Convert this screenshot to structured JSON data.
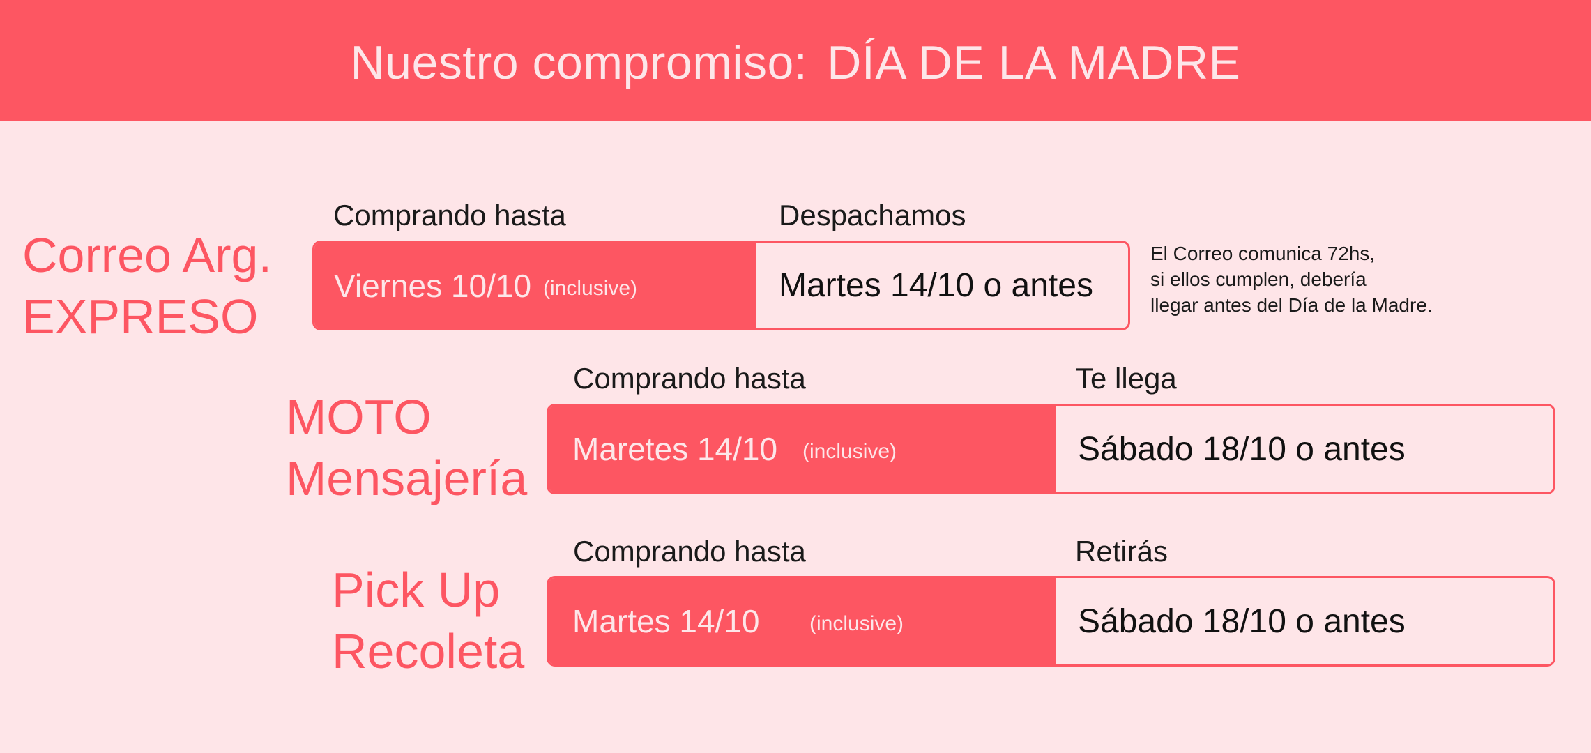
{
  "header": {
    "title_part1": "Nuestro compromiso:",
    "title_part2": "DÍA DE LA MADRE"
  },
  "services": [
    {
      "name_line1": "Correo Arg.",
      "name_line2": "EXPRESO",
      "label_left": "Comprando hasta",
      "label_right": "Despachamos",
      "deadline": "Viernes 10/10",
      "deadline_note": "(inclusive)",
      "result": "Martes 14/10 o antes",
      "note_lines": [
        "El Correo comunica 72hs,",
        "si ellos cumplen, debería",
        "llegar antes del Día de la Madre."
      ]
    },
    {
      "name_line1": "MOTO",
      "name_line2": "Mensajería",
      "label_left": "Comprando hasta",
      "label_right": "Te llega",
      "deadline": "Maretes 14/10",
      "deadline_note": "(inclusive)",
      "result": "Sábado 18/10 o antes"
    },
    {
      "name_line1": "Pick Up",
      "name_line2": "Recoleta",
      "label_left": "Comprando hasta",
      "label_right": "Retirás",
      "deadline": "Martes 14/10",
      "deadline_note": "(inclusive)",
      "result": "Sábado 18/10 o antes"
    }
  ],
  "colors": {
    "accent": "#fd5662",
    "background": "#fee5e8",
    "banner_text": "#fde6e9",
    "text": "#111111"
  }
}
